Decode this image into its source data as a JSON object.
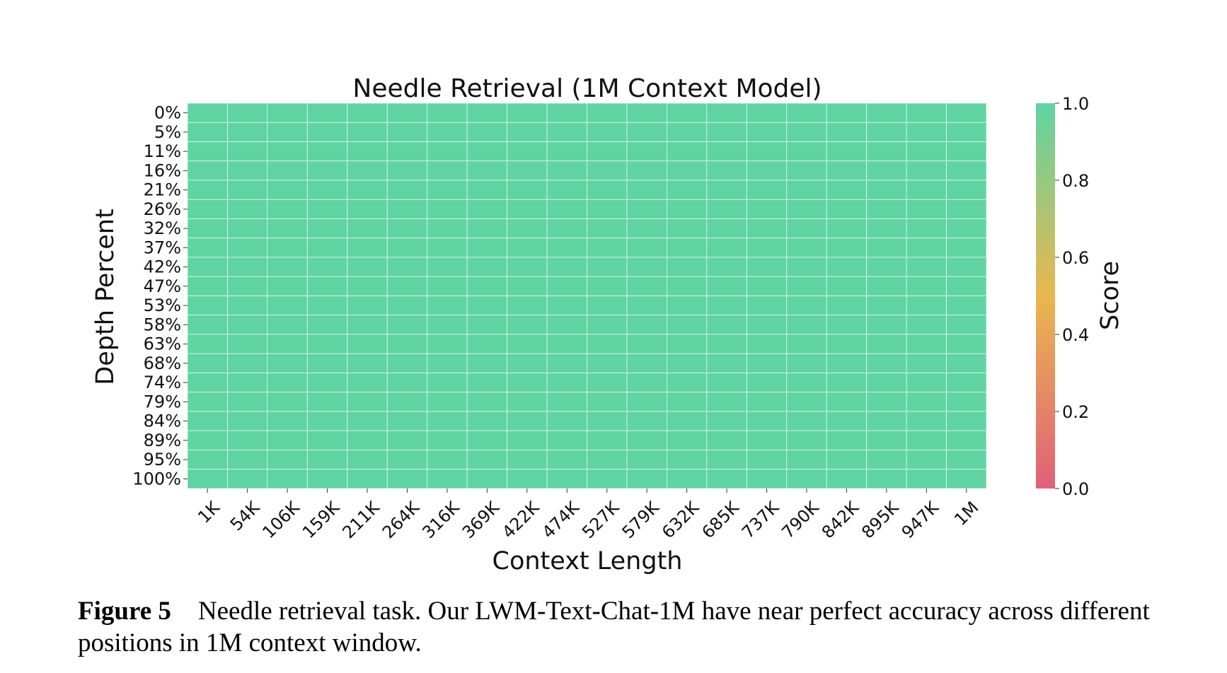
{
  "chart_data": {
    "type": "heatmap",
    "title": "Needle Retrieval (1M Context Model)",
    "xlabel": "Context Length",
    "ylabel": "Depth Percent",
    "x_categories": [
      "1K",
      "54K",
      "106K",
      "159K",
      "211K",
      "264K",
      "316K",
      "369K",
      "422K",
      "474K",
      "527K",
      "579K",
      "632K",
      "685K",
      "737K",
      "790K",
      "842K",
      "895K",
      "947K",
      "1M"
    ],
    "y_categories": [
      "0%",
      "5%",
      "11%",
      "16%",
      "21%",
      "26%",
      "32%",
      "37%",
      "42%",
      "47%",
      "53%",
      "58%",
      "63%",
      "68%",
      "74%",
      "79%",
      "84%",
      "89%",
      "95%",
      "100%"
    ],
    "values_note": "",
    "values": [
      [
        1,
        1,
        1,
        1,
        1,
        1,
        1,
        1,
        1,
        1,
        1,
        1,
        1,
        1,
        1,
        1,
        1,
        1,
        1,
        1
      ],
      [
        1,
        1,
        1,
        1,
        1,
        1,
        1,
        1,
        1,
        1,
        1,
        1,
        1,
        1,
        1,
        1,
        1,
        1,
        1,
        1
      ],
      [
        1,
        1,
        1,
        1,
        1,
        1,
        1,
        1,
        1,
        1,
        1,
        1,
        1,
        1,
        1,
        1,
        1,
        1,
        1,
        1
      ],
      [
        1,
        1,
        1,
        1,
        1,
        1,
        1,
        1,
        1,
        1,
        1,
        1,
        1,
        1,
        1,
        1,
        1,
        1,
        1,
        1
      ],
      [
        1,
        1,
        1,
        1,
        1,
        1,
        1,
        1,
        1,
        1,
        1,
        1,
        1,
        1,
        1,
        1,
        1,
        1,
        1,
        1
      ],
      [
        1,
        1,
        1,
        1,
        1,
        1,
        1,
        1,
        1,
        1,
        1,
        1,
        1,
        1,
        1,
        1,
        1,
        1,
        1,
        1
      ],
      [
        1,
        1,
        1,
        1,
        1,
        1,
        1,
        1,
        1,
        1,
        1,
        1,
        1,
        1,
        1,
        1,
        1,
        1,
        1,
        1
      ],
      [
        1,
        1,
        1,
        1,
        1,
        1,
        1,
        1,
        1,
        1,
        1,
        1,
        1,
        1,
        1,
        1,
        1,
        1,
        1,
        1
      ],
      [
        1,
        1,
        1,
        1,
        1,
        1,
        1,
        1,
        1,
        1,
        1,
        1,
        1,
        1,
        1,
        1,
        1,
        1,
        1,
        1
      ],
      [
        1,
        1,
        1,
        1,
        1,
        1,
        1,
        1,
        1,
        1,
        1,
        1,
        1,
        1,
        1,
        1,
        1,
        1,
        1,
        1
      ],
      [
        1,
        1,
        1,
        1,
        1,
        1,
        1,
        1,
        1,
        1,
        1,
        1,
        1,
        1,
        1,
        1,
        1,
        1,
        1,
        1
      ],
      [
        1,
        1,
        1,
        1,
        1,
        1,
        1,
        1,
        1,
        1,
        1,
        1,
        1,
        1,
        1,
        1,
        1,
        1,
        1,
        1
      ],
      [
        1,
        1,
        1,
        1,
        1,
        1,
        1,
        1,
        1,
        1,
        1,
        1,
        1,
        1,
        1,
        1,
        1,
        1,
        1,
        1
      ],
      [
        1,
        1,
        1,
        1,
        1,
        1,
        1,
        1,
        1,
        1,
        1,
        1,
        1,
        1,
        1,
        1,
        1,
        1,
        1,
        1
      ],
      [
        1,
        1,
        1,
        1,
        1,
        1,
        1,
        1,
        1,
        1,
        1,
        1,
        1,
        1,
        1,
        1,
        1,
        1,
        1,
        1
      ],
      [
        1,
        1,
        1,
        1,
        1,
        1,
        1,
        1,
        1,
        1,
        1,
        1,
        1,
        1,
        1,
        1,
        1,
        1,
        1,
        1
      ],
      [
        1,
        1,
        1,
        1,
        1,
        1,
        1,
        1,
        1,
        1,
        1,
        1,
        1,
        1,
        1,
        1,
        1,
        1,
        1,
        1
      ],
      [
        1,
        1,
        1,
        1,
        1,
        1,
        1,
        1,
        1,
        1,
        1,
        1,
        1,
        1,
        1,
        1,
        1,
        1,
        1,
        1
      ],
      [
        1,
        1,
        1,
        1,
        1,
        1,
        1,
        1,
        1,
        1,
        1,
        1,
        1,
        1,
        1,
        1,
        1,
        1,
        1,
        1
      ],
      [
        1,
        1,
        1,
        1,
        1,
        1,
        1,
        1,
        1,
        1,
        1,
        1,
        1,
        1,
        1,
        1,
        1,
        1,
        1,
        1
      ]
    ],
    "colorbar": {
      "label": "Score",
      "range": [
        0,
        1
      ],
      "ticks": [
        "0.0",
        "0.2",
        "0.4",
        "0.6",
        "0.8",
        "1.0"
      ],
      "colors": [
        "#e0607a",
        "#e9b74e",
        "#5fd4a2"
      ]
    },
    "grid": true
  },
  "caption": {
    "label": "Figure 5",
    "text": "Needle retrieval task. Our LWM-Text-Chat-1M have near perfect accuracy across different positions in 1M context window."
  }
}
